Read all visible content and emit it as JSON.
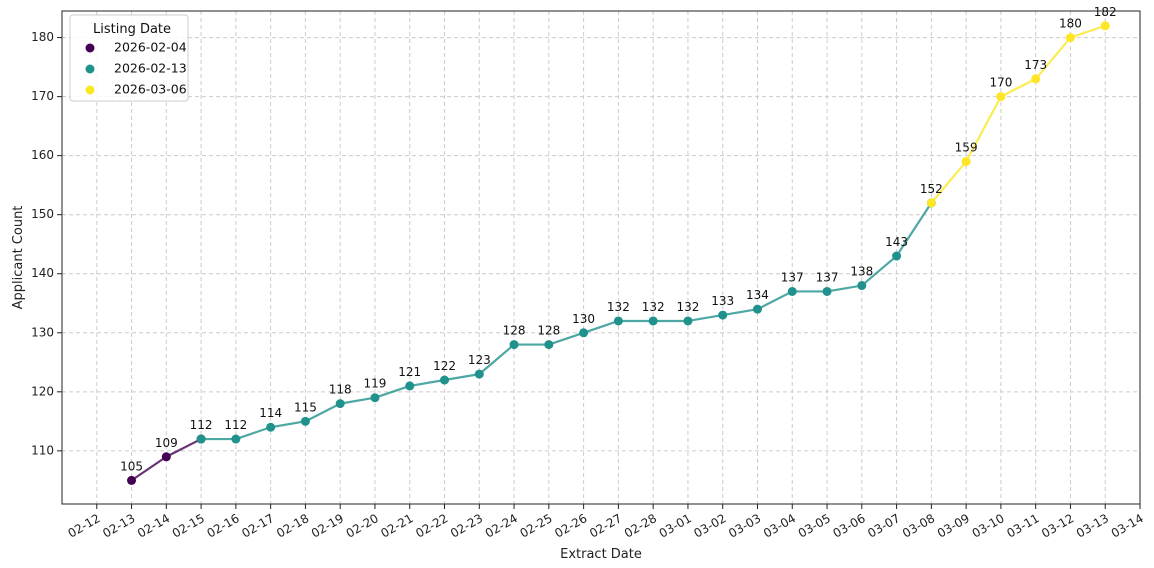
{
  "chart_data": {
    "type": "line",
    "title": "",
    "xlabel": "Extract Date",
    "ylabel": "Applicant Count",
    "x_ticks": [
      "02-12",
      "02-13",
      "02-14",
      "02-15",
      "02-16",
      "02-17",
      "02-18",
      "02-19",
      "02-20",
      "02-21",
      "02-22",
      "02-23",
      "02-24",
      "02-25",
      "02-26",
      "02-27",
      "02-28",
      "03-01",
      "03-02",
      "03-03",
      "03-04",
      "03-05",
      "03-06",
      "03-07",
      "03-08",
      "03-09",
      "03-10",
      "03-11",
      "03-12",
      "03-13",
      "03-14"
    ],
    "y_ticks": [
      110,
      120,
      130,
      140,
      150,
      160,
      170,
      180
    ],
    "xlim": [
      "2026-02-11",
      "2026-03-14"
    ],
    "ylim": [
      101,
      184.5
    ],
    "grid": true,
    "legend": {
      "title": "Listing Date",
      "placement": "upper-left"
    },
    "series": [
      {
        "name": "2026-02-04",
        "color": "#440154",
        "x": [
          "2026-02-13",
          "2026-02-14",
          "2026-02-15"
        ],
        "y": [
          105,
          109,
          112
        ],
        "labels": [
          "105",
          "109",
          ""
        ]
      },
      {
        "name": "2026-02-13",
        "color": "#21918c",
        "x": [
          "2026-02-15",
          "2026-02-16",
          "2026-02-17",
          "2026-02-18",
          "2026-02-19",
          "2026-02-20",
          "2026-02-21",
          "2026-02-22",
          "2026-02-23",
          "2026-02-24",
          "2026-02-25",
          "2026-02-26",
          "2026-02-27",
          "2026-02-28",
          "2026-03-01",
          "2026-03-02",
          "2026-03-03",
          "2026-03-04",
          "2026-03-05",
          "2026-03-06",
          "2026-03-07",
          "2026-03-08"
        ],
        "y": [
          112,
          112,
          114,
          115,
          118,
          119,
          121,
          122,
          123,
          128,
          128,
          130,
          132,
          132,
          132,
          133,
          134,
          137,
          137,
          138,
          143,
          152
        ],
        "labels": [
          "112",
          "112",
          "114",
          "115",
          "118",
          "119",
          "121",
          "122",
          "123",
          "128",
          "128",
          "130",
          "132",
          "132",
          "132",
          "133",
          "134",
          "137",
          "137",
          "138",
          "143",
          ""
        ]
      },
      {
        "name": "2026-03-06",
        "color": "#fde725",
        "x": [
          "2026-03-08",
          "2026-03-09",
          "2026-03-10",
          "2026-03-11",
          "2026-03-12",
          "2026-03-13"
        ],
        "y": [
          152,
          159,
          170,
          173,
          180,
          182
        ],
        "labels": [
          "152",
          "159",
          "170",
          "173",
          "180",
          "182"
        ]
      }
    ]
  }
}
